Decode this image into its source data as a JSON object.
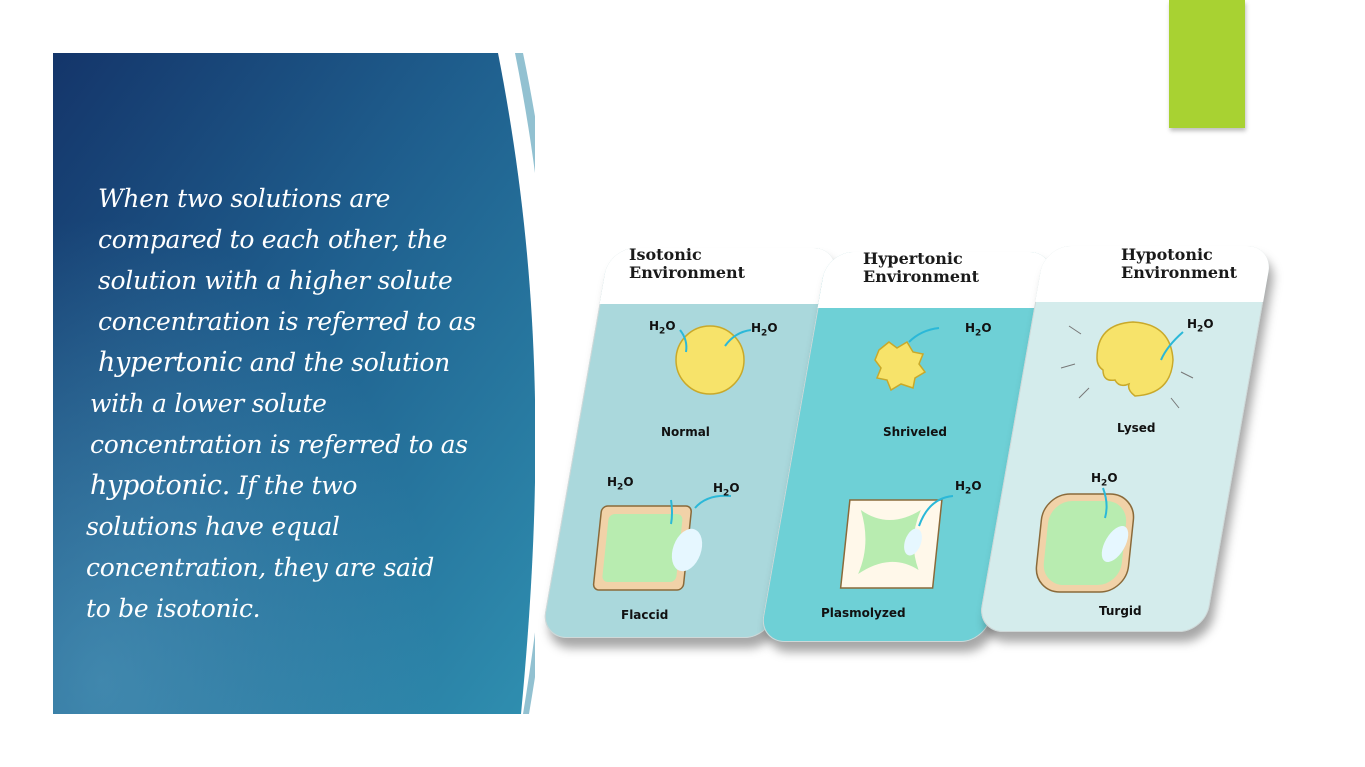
{
  "slide": {
    "body_lines": [
      "When two solutions are",
      "compared to each other, the",
      "solution with a higher solute",
      "concentration is referred to as",
      "and the solution",
      "with a lower solute",
      "concentration is referred to as",
      "If the two",
      "solutions have equal",
      "concentration, they are said",
      "to be isotonic."
    ],
    "term_hypertonic": "hypertonic",
    "term_hypotonic": "hypotonic."
  },
  "figure": {
    "panels": [
      {
        "title_line1": "Isotonic",
        "title_line2": "Environment",
        "top_cell_label": "Normal",
        "bottom_cell_label": "Flaccid",
        "background": "#aad8dc"
      },
      {
        "title_line1": "Hypertonic",
        "title_line2": "Environment",
        "top_cell_label": "Shriveled",
        "bottom_cell_label": "Plasmolyzed",
        "background": "#6ed0d6"
      },
      {
        "title_line1": "Hypotonic",
        "title_line2": "Environment",
        "top_cell_label": "Lysed",
        "bottom_cell_label": "Turgid",
        "background": "#d4ecec"
      }
    ],
    "water_label": "H",
    "water_sub": "2",
    "water_suffix": "O"
  },
  "colors": {
    "accent_green": "#a8d232",
    "panel_dark": "#163a6e",
    "panel_light": "#2f8fa8",
    "cell_yellow": "#f7e36a",
    "plant_green": "#b8ecb0",
    "cell_wall": "#f1d2a8"
  }
}
